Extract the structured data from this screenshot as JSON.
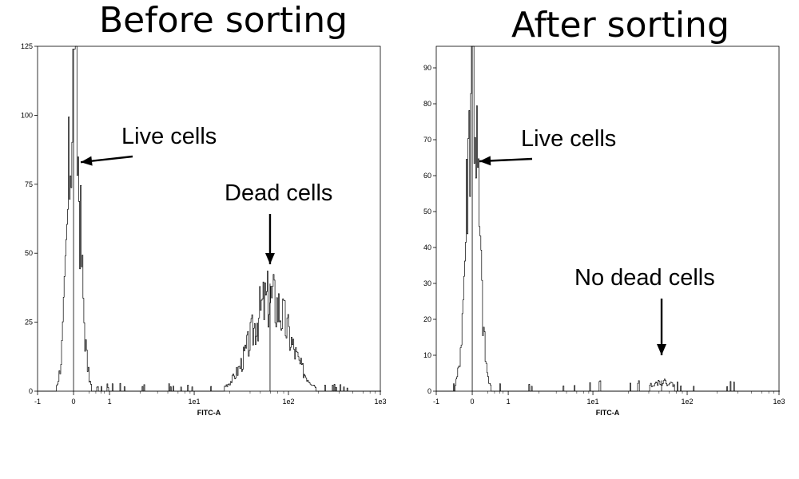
{
  "titles": {
    "left": "Before sorting",
    "right": "After sorting"
  },
  "chart_data": [
    {
      "type": "area",
      "title": "Before sorting",
      "xlabel": "FITC-A",
      "ylabel": "",
      "xscale": "biexponential",
      "xlim": [
        -1,
        1000
      ],
      "ylim": [
        0,
        125
      ],
      "xticks": [
        "-1",
        "0",
        "1",
        "1e1",
        "1e2",
        "1e3"
      ],
      "yticks": [
        0,
        25,
        50,
        75,
        100,
        125
      ],
      "series": [
        {
          "peaks": [
            {
              "center": 0,
              "height": 124
            },
            {
              "center": 60,
              "height": 39
            }
          ]
        }
      ],
      "annotations": [
        {
          "text": "Live cells",
          "points_to_x": 0.2,
          "points_to_y": 83
        },
        {
          "text": "Dead cells",
          "points_to_x": 60,
          "points_to_y": 46
        }
      ]
    },
    {
      "type": "area",
      "title": "After sorting",
      "xlabel": "FITC-A",
      "ylabel": "",
      "xscale": "biexponential",
      "xlim": [
        -1,
        1000
      ],
      "ylim": [
        0,
        96
      ],
      "xticks": [
        "-1",
        "0",
        "1",
        "1e1",
        "1e2",
        "1e3"
      ],
      "yticks": [
        0,
        10,
        20,
        30,
        40,
        50,
        60,
        70,
        80,
        90
      ],
      "series": [
        {
          "peaks": [
            {
              "center": 0,
              "height": 96
            },
            {
              "center": 50,
              "height": 3
            }
          ]
        }
      ],
      "annotations": [
        {
          "text": "Live cells",
          "points_to_x": 0.2,
          "points_to_y": 64
        },
        {
          "text": "No dead cells",
          "points_to_x": 50,
          "points_to_y": 10
        }
      ]
    }
  ]
}
